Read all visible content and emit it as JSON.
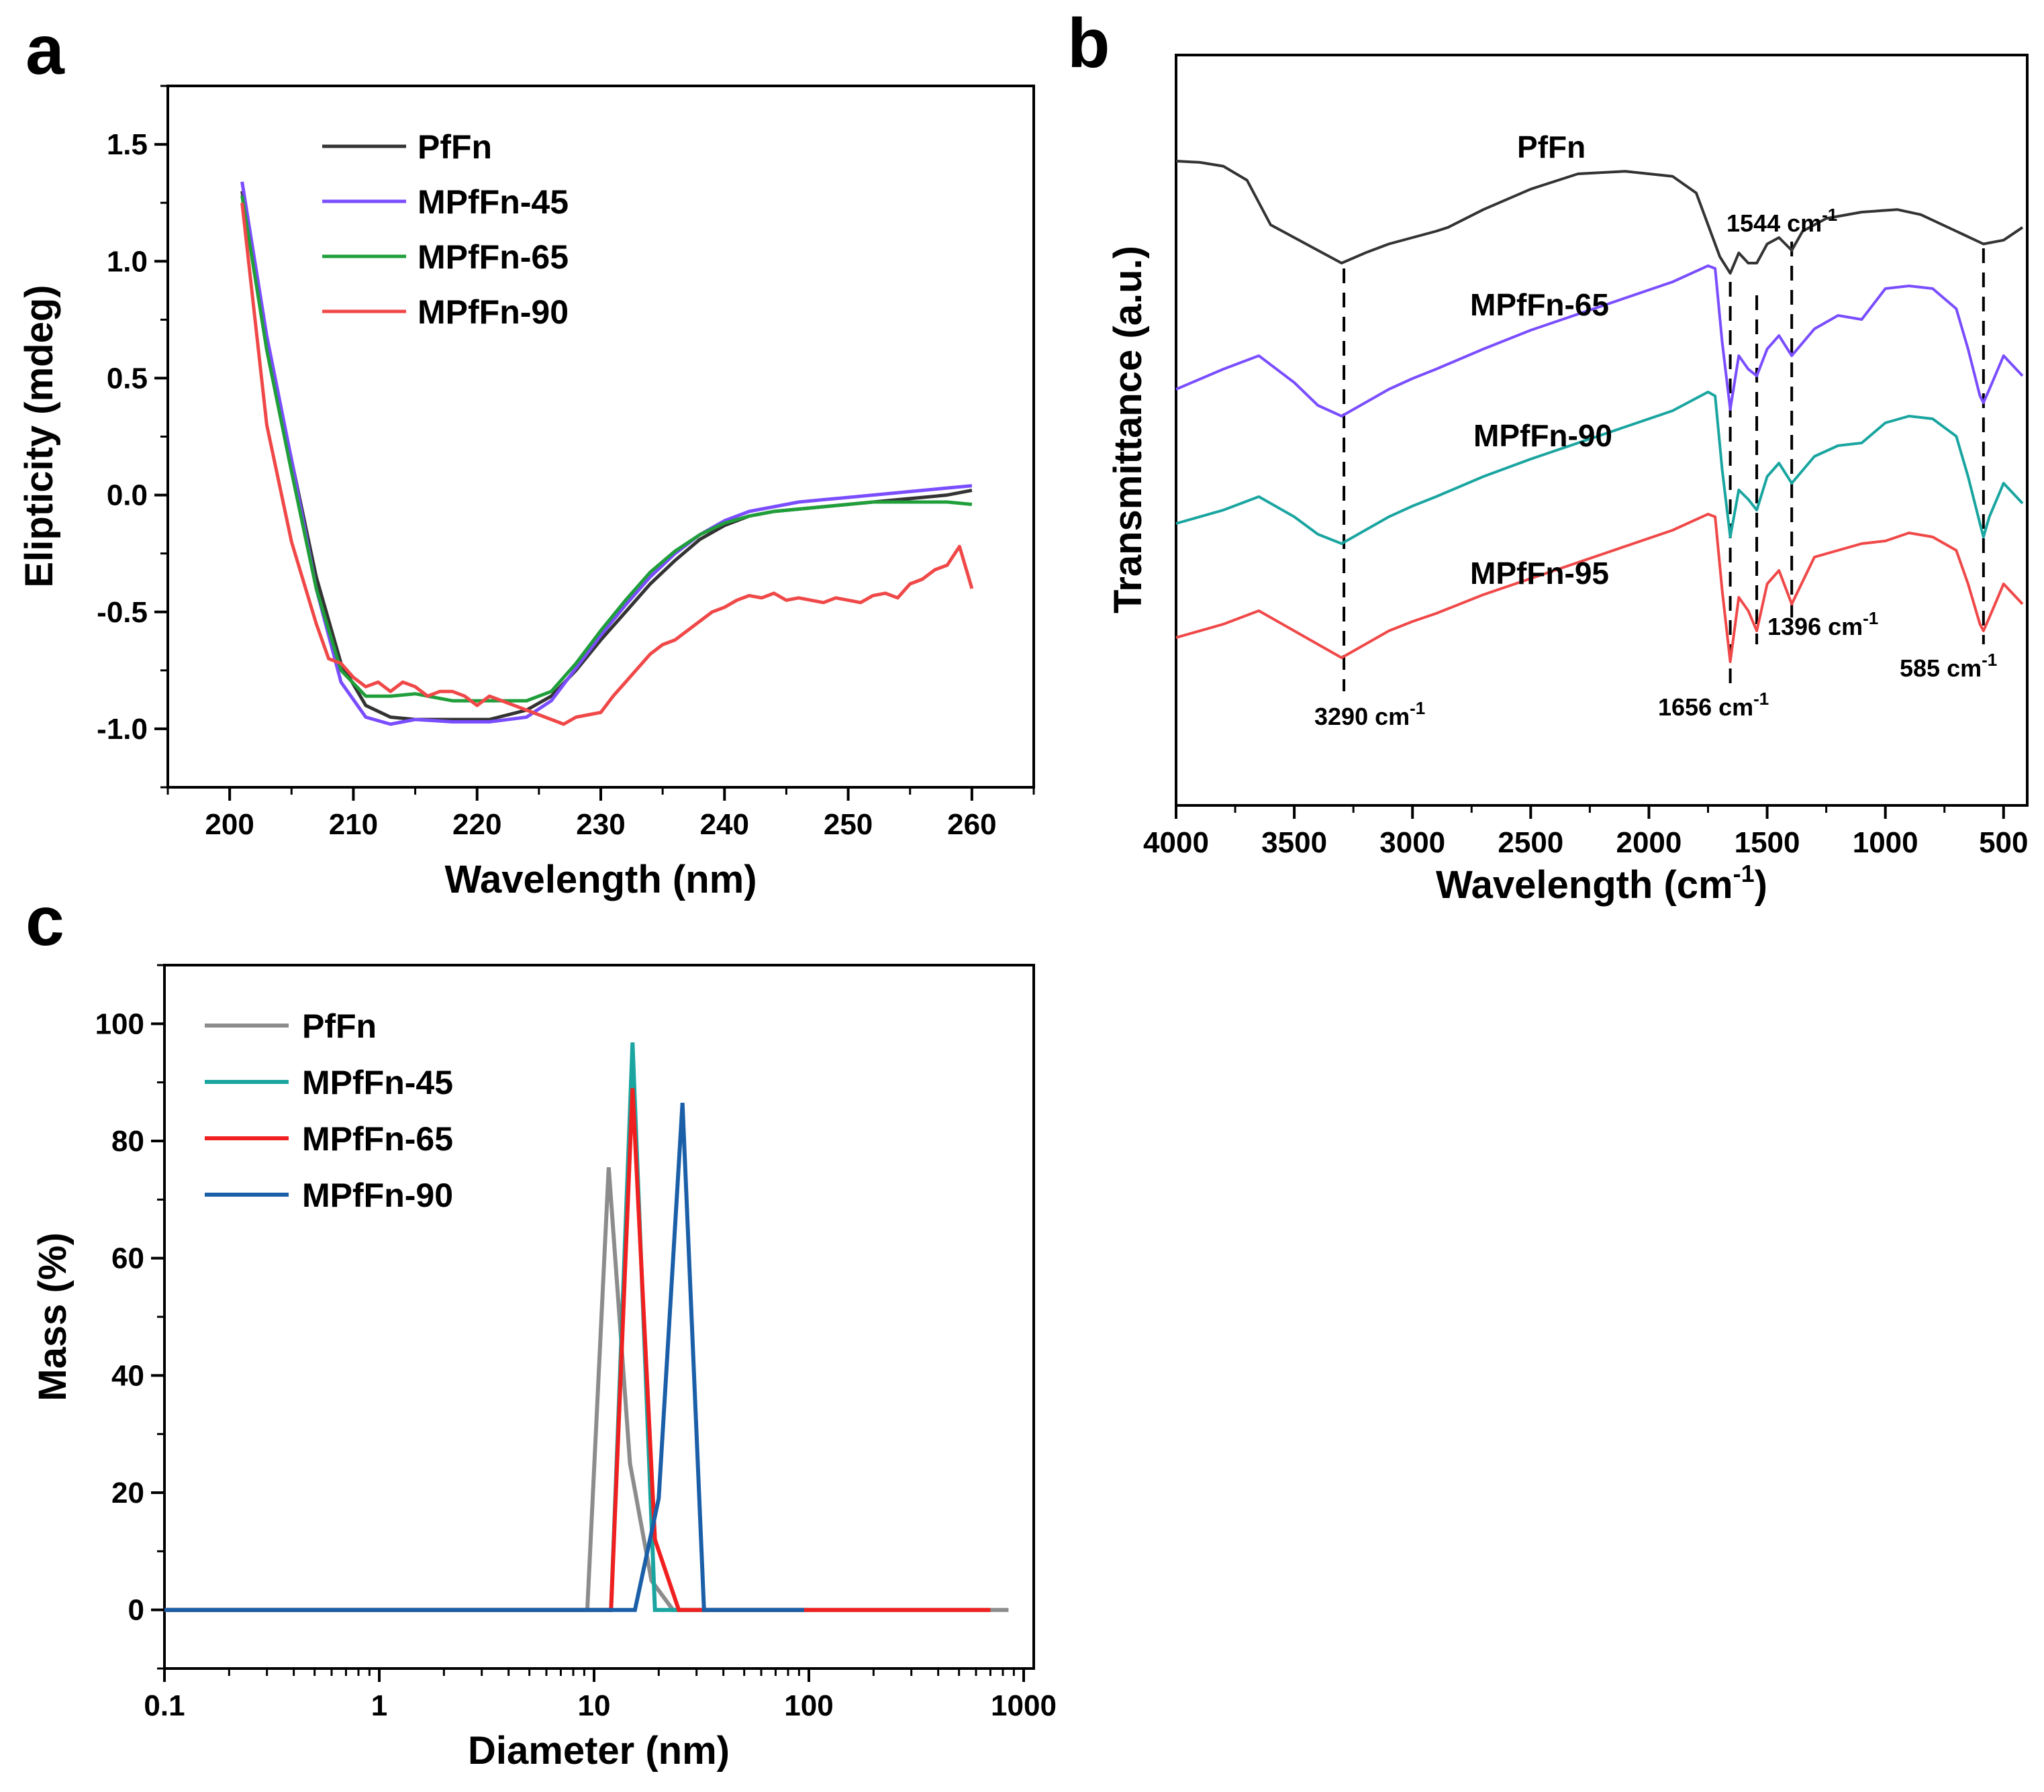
{
  "panels": {
    "a": "a",
    "b": "b",
    "c": "c"
  },
  "chart_data": [
    {
      "id": "a",
      "type": "line",
      "xlabel": "Wavelength (nm)",
      "ylabel": "Elipticity (mdeg)",
      "xlim": [
        195,
        265
      ],
      "ylim": [
        -1.25,
        1.75
      ],
      "xticks": [
        200,
        210,
        220,
        230,
        240,
        250,
        260
      ],
      "yticks": [
        -1.0,
        -0.5,
        0.0,
        0.5,
        1.0,
        1.5
      ],
      "xtick_labels": [
        "200",
        "210",
        "220",
        "230",
        "240",
        "250",
        "260"
      ],
      "ytick_labels": [
        "-1.0",
        "-0.5",
        "0.0",
        "0.5",
        "1.0",
        "1.5"
      ],
      "legend_position": "top-left",
      "series": [
        {
          "name": "PfFn",
          "color": "#333333",
          "x": [
            201,
            203,
            205,
            207,
            209,
            211,
            213,
            215,
            218,
            221,
            224,
            226,
            228,
            230,
            232,
            234,
            236,
            238,
            240,
            242,
            244,
            246,
            248,
            250,
            252,
            254,
            256,
            258,
            260
          ],
          "y": [
            1.3,
            0.65,
            0.15,
            -0.35,
            -0.72,
            -0.9,
            -0.95,
            -0.96,
            -0.96,
            -0.96,
            -0.92,
            -0.86,
            -0.75,
            -0.62,
            -0.5,
            -0.38,
            -0.28,
            -0.19,
            -0.13,
            -0.09,
            -0.07,
            -0.06,
            -0.05,
            -0.04,
            -0.03,
            -0.02,
            -0.01,
            0.0,
            0.02
          ]
        },
        {
          "name": "MPfFn-45",
          "color": "#7a4dff",
          "x": [
            201,
            203,
            205,
            207,
            209,
            211,
            213,
            215,
            218,
            221,
            224,
            226,
            228,
            230,
            232,
            234,
            236,
            238,
            240,
            242,
            244,
            246,
            248,
            250,
            252,
            254,
            256,
            258,
            260
          ],
          "y": [
            1.34,
            0.68,
            0.15,
            -0.4,
            -0.8,
            -0.95,
            -0.98,
            -0.96,
            -0.97,
            -0.97,
            -0.95,
            -0.88,
            -0.74,
            -0.6,
            -0.47,
            -0.35,
            -0.25,
            -0.17,
            -0.11,
            -0.07,
            -0.05,
            -0.03,
            -0.02,
            -0.01,
            0.0,
            0.01,
            0.02,
            0.03,
            0.04
          ]
        },
        {
          "name": "MPfFn-65",
          "color": "#1f9e3a",
          "x": [
            201,
            203,
            205,
            207,
            209,
            211,
            213,
            215,
            218,
            221,
            224,
            226,
            228,
            230,
            232,
            234,
            236,
            238,
            240,
            242,
            244,
            246,
            248,
            250,
            252,
            254,
            256,
            258,
            260
          ],
          "y": [
            1.28,
            0.62,
            0.1,
            -0.4,
            -0.75,
            -0.86,
            -0.86,
            -0.85,
            -0.88,
            -0.88,
            -0.88,
            -0.84,
            -0.72,
            -0.58,
            -0.45,
            -0.33,
            -0.24,
            -0.17,
            -0.12,
            -0.09,
            -0.07,
            -0.06,
            -0.05,
            -0.04,
            -0.03,
            -0.03,
            -0.03,
            -0.03,
            -0.04
          ]
        },
        {
          "name": "MPfFn-90",
          "color": "#f04848",
          "x": [
            201,
            203,
            205,
            207,
            208,
            209,
            210,
            211,
            212,
            213,
            214,
            215,
            216,
            217,
            218,
            219,
            220,
            221,
            222,
            223,
            224,
            225,
            226,
            227,
            228,
            229,
            230,
            231,
            232,
            233,
            234,
            235,
            236,
            237,
            238,
            239,
            240,
            241,
            242,
            243,
            244,
            245,
            246,
            247,
            248,
            249,
            250,
            251,
            252,
            253,
            254,
            255,
            256,
            257,
            258,
            259,
            260
          ],
          "y": [
            1.25,
            0.3,
            -0.2,
            -0.55,
            -0.7,
            -0.72,
            -0.78,
            -0.82,
            -0.8,
            -0.84,
            -0.8,
            -0.82,
            -0.86,
            -0.84,
            -0.84,
            -0.86,
            -0.9,
            -0.86,
            -0.88,
            -0.9,
            -0.92,
            -0.94,
            -0.96,
            -0.98,
            -0.95,
            -0.94,
            -0.93,
            -0.86,
            -0.8,
            -0.74,
            -0.68,
            -0.64,
            -0.62,
            -0.58,
            -0.54,
            -0.5,
            -0.48,
            -0.45,
            -0.43,
            -0.44,
            -0.42,
            -0.45,
            -0.44,
            -0.45,
            -0.46,
            -0.44,
            -0.45,
            -0.46,
            -0.43,
            -0.42,
            -0.44,
            -0.38,
            -0.36,
            -0.32,
            -0.3,
            -0.22,
            -0.4
          ]
        }
      ]
    },
    {
      "id": "b",
      "type": "line",
      "xlabel": "Wavelength (cm",
      "xlabel_sup": "-1",
      "xlabel_end": ")",
      "ylabel": "Transmittance (a.u.)",
      "xlim": [
        4000,
        400
      ],
      "xticks": [
        4000,
        3500,
        3000,
        2500,
        2000,
        1500,
        1000,
        500
      ],
      "xtick_labels": [
        "4000",
        "3500",
        "3000",
        "2500",
        "2000",
        "1500",
        "1000",
        "500"
      ],
      "annotations": [
        {
          "x": 3290,
          "text": "3290 cm",
          "sup": "-1"
        },
        {
          "x": 1656,
          "text": "1656 cm",
          "sup": "-1"
        },
        {
          "x": 1544,
          "text": "1544 cm",
          "sup": "-1"
        },
        {
          "x": 1396,
          "text": "1396 cm",
          "sup": "-1"
        },
        {
          "x": 585,
          "text": "585 cm",
          "sup": "-1"
        }
      ],
      "series": [
        {
          "name": "PfFn",
          "color": "#333333",
          "offset": 3.0,
          "x": [
            4000,
            3900,
            3800,
            3700,
            3600,
            3500,
            3400,
            3300,
            3200,
            3100,
            3000,
            2900,
            2850,
            2700,
            2500,
            2300,
            2100,
            1900,
            1800,
            1750,
            1700,
            1656,
            1620,
            1580,
            1544,
            1500,
            1450,
            1396,
            1350,
            1250,
            1100,
            950,
            850,
            700,
            585,
            500,
            420
          ],
          "y": [
            1.0,
            0.99,
            0.96,
            0.85,
            0.5,
            0.4,
            0.3,
            0.2,
            0.28,
            0.35,
            0.4,
            0.45,
            0.48,
            0.62,
            0.78,
            0.9,
            0.92,
            0.88,
            0.75,
            0.5,
            0.25,
            0.12,
            0.28,
            0.2,
            0.2,
            0.35,
            0.4,
            0.3,
            0.45,
            0.55,
            0.6,
            0.62,
            0.58,
            0.45,
            0.35,
            0.38,
            0.48
          ]
        },
        {
          "name": "MPfFn-65",
          "color": "#7a4dff",
          "offset": 2.0,
          "x": [
            4000,
            3800,
            3650,
            3500,
            3400,
            3300,
            3200,
            3100,
            3000,
            2900,
            2700,
            2500,
            2300,
            2100,
            1900,
            1750,
            1720,
            1690,
            1656,
            1620,
            1580,
            1544,
            1500,
            1450,
            1396,
            1300,
            1200,
            1100,
            1000,
            900,
            800,
            700,
            650,
            600,
            585,
            560,
            500,
            420
          ],
          "y": [
            0.3,
            0.45,
            0.55,
            0.35,
            0.18,
            0.1,
            0.2,
            0.3,
            0.38,
            0.45,
            0.6,
            0.74,
            0.86,
            0.98,
            1.1,
            1.22,
            1.2,
            0.65,
            0.15,
            0.55,
            0.45,
            0.4,
            0.6,
            0.7,
            0.55,
            0.75,
            0.85,
            0.82,
            1.05,
            1.07,
            1.05,
            0.9,
            0.6,
            0.25,
            0.2,
            0.3,
            0.55,
            0.4
          ]
        },
        {
          "name": "MPfFn-90",
          "color": "#1aa5a0",
          "offset": 1.0,
          "x": [
            4000,
            3800,
            3650,
            3500,
            3400,
            3300,
            3200,
            3100,
            3000,
            2900,
            2700,
            2500,
            2300,
            2100,
            1900,
            1750,
            1720,
            1690,
            1656,
            1620,
            1580,
            1544,
            1500,
            1450,
            1396,
            1300,
            1200,
            1100,
            1000,
            900,
            800,
            700,
            650,
            600,
            585,
            560,
            500,
            420
          ],
          "y": [
            0.2,
            0.3,
            0.4,
            0.25,
            0.12,
            0.05,
            0.15,
            0.25,
            0.33,
            0.4,
            0.55,
            0.68,
            0.8,
            0.92,
            1.04,
            1.18,
            1.15,
            0.6,
            0.1,
            0.45,
            0.38,
            0.3,
            0.55,
            0.65,
            0.5,
            0.7,
            0.78,
            0.8,
            0.95,
            1.0,
            0.98,
            0.85,
            0.55,
            0.2,
            0.1,
            0.25,
            0.5,
            0.35
          ]
        },
        {
          "name": "MPfFn-95",
          "color": "#f04848",
          "offset": 0.0,
          "x": [
            4000,
            3800,
            3650,
            3500,
            3400,
            3300,
            3200,
            3100,
            3000,
            2900,
            2700,
            2500,
            2300,
            2100,
            1900,
            1750,
            1720,
            1690,
            1656,
            1620,
            1580,
            1544,
            1500,
            1450,
            1396,
            1300,
            1200,
            1100,
            1000,
            900,
            800,
            700,
            650,
            600,
            585,
            560,
            500,
            420
          ],
          "y": [
            0.3,
            0.4,
            0.5,
            0.35,
            0.25,
            0.15,
            0.25,
            0.35,
            0.42,
            0.48,
            0.62,
            0.74,
            0.86,
            0.98,
            1.1,
            1.22,
            1.2,
            0.65,
            0.12,
            0.6,
            0.5,
            0.35,
            0.7,
            0.8,
            0.55,
            0.9,
            0.95,
            1.0,
            1.02,
            1.08,
            1.05,
            0.95,
            0.7,
            0.4,
            0.35,
            0.45,
            0.7,
            0.55
          ]
        }
      ]
    },
    {
      "id": "c",
      "type": "line",
      "xscale": "log",
      "xlabel": "Diameter (nm)",
      "ylabel": "Mass (%)",
      "xlim": [
        0.1,
        1000
      ],
      "ylim": [
        -10,
        110
      ],
      "xticks": [
        0.1,
        1,
        10,
        100,
        1000
      ],
      "yticks": [
        0,
        20,
        40,
        60,
        80,
        100
      ],
      "xtick_labels": [
        "0.1",
        "1",
        "10",
        "100",
        "1000"
      ],
      "ytick_labels": [
        "0",
        "20",
        "40",
        "60",
        "80",
        "100"
      ],
      "legend_position": "top-left",
      "series": [
        {
          "name": "PfFn",
          "color": "#8c8c8c",
          "x": [
            0.1,
            9.3,
            11.7,
            14.7,
            18.5,
            23.3,
            100,
            850
          ],
          "y": [
            0,
            0,
            75.5,
            25,
            5,
            0,
            0,
            0
          ]
        },
        {
          "name": "MPfFn-45",
          "color": "#1aa5a0",
          "x": [
            0.1,
            12.0,
            15.1,
            19.2,
            24.0,
            100
          ],
          "y": [
            0,
            0,
            96.8,
            0,
            0,
            0
          ]
        },
        {
          "name": "MPfFn-65",
          "color": "#f02020",
          "x": [
            0.1,
            12.0,
            15.1,
            19.2,
            24.8,
            32.0,
            100,
            700
          ],
          "y": [
            0,
            0,
            89,
            12,
            0,
            0,
            0,
            0
          ]
        },
        {
          "name": "MPfFn-90",
          "color": "#1a5fa8",
          "x": [
            0.1,
            15.5,
            20.0,
            25.8,
            32.5,
            95
          ],
          "y": [
            0,
            0,
            19,
            86.5,
            0,
            0
          ]
        }
      ]
    }
  ]
}
